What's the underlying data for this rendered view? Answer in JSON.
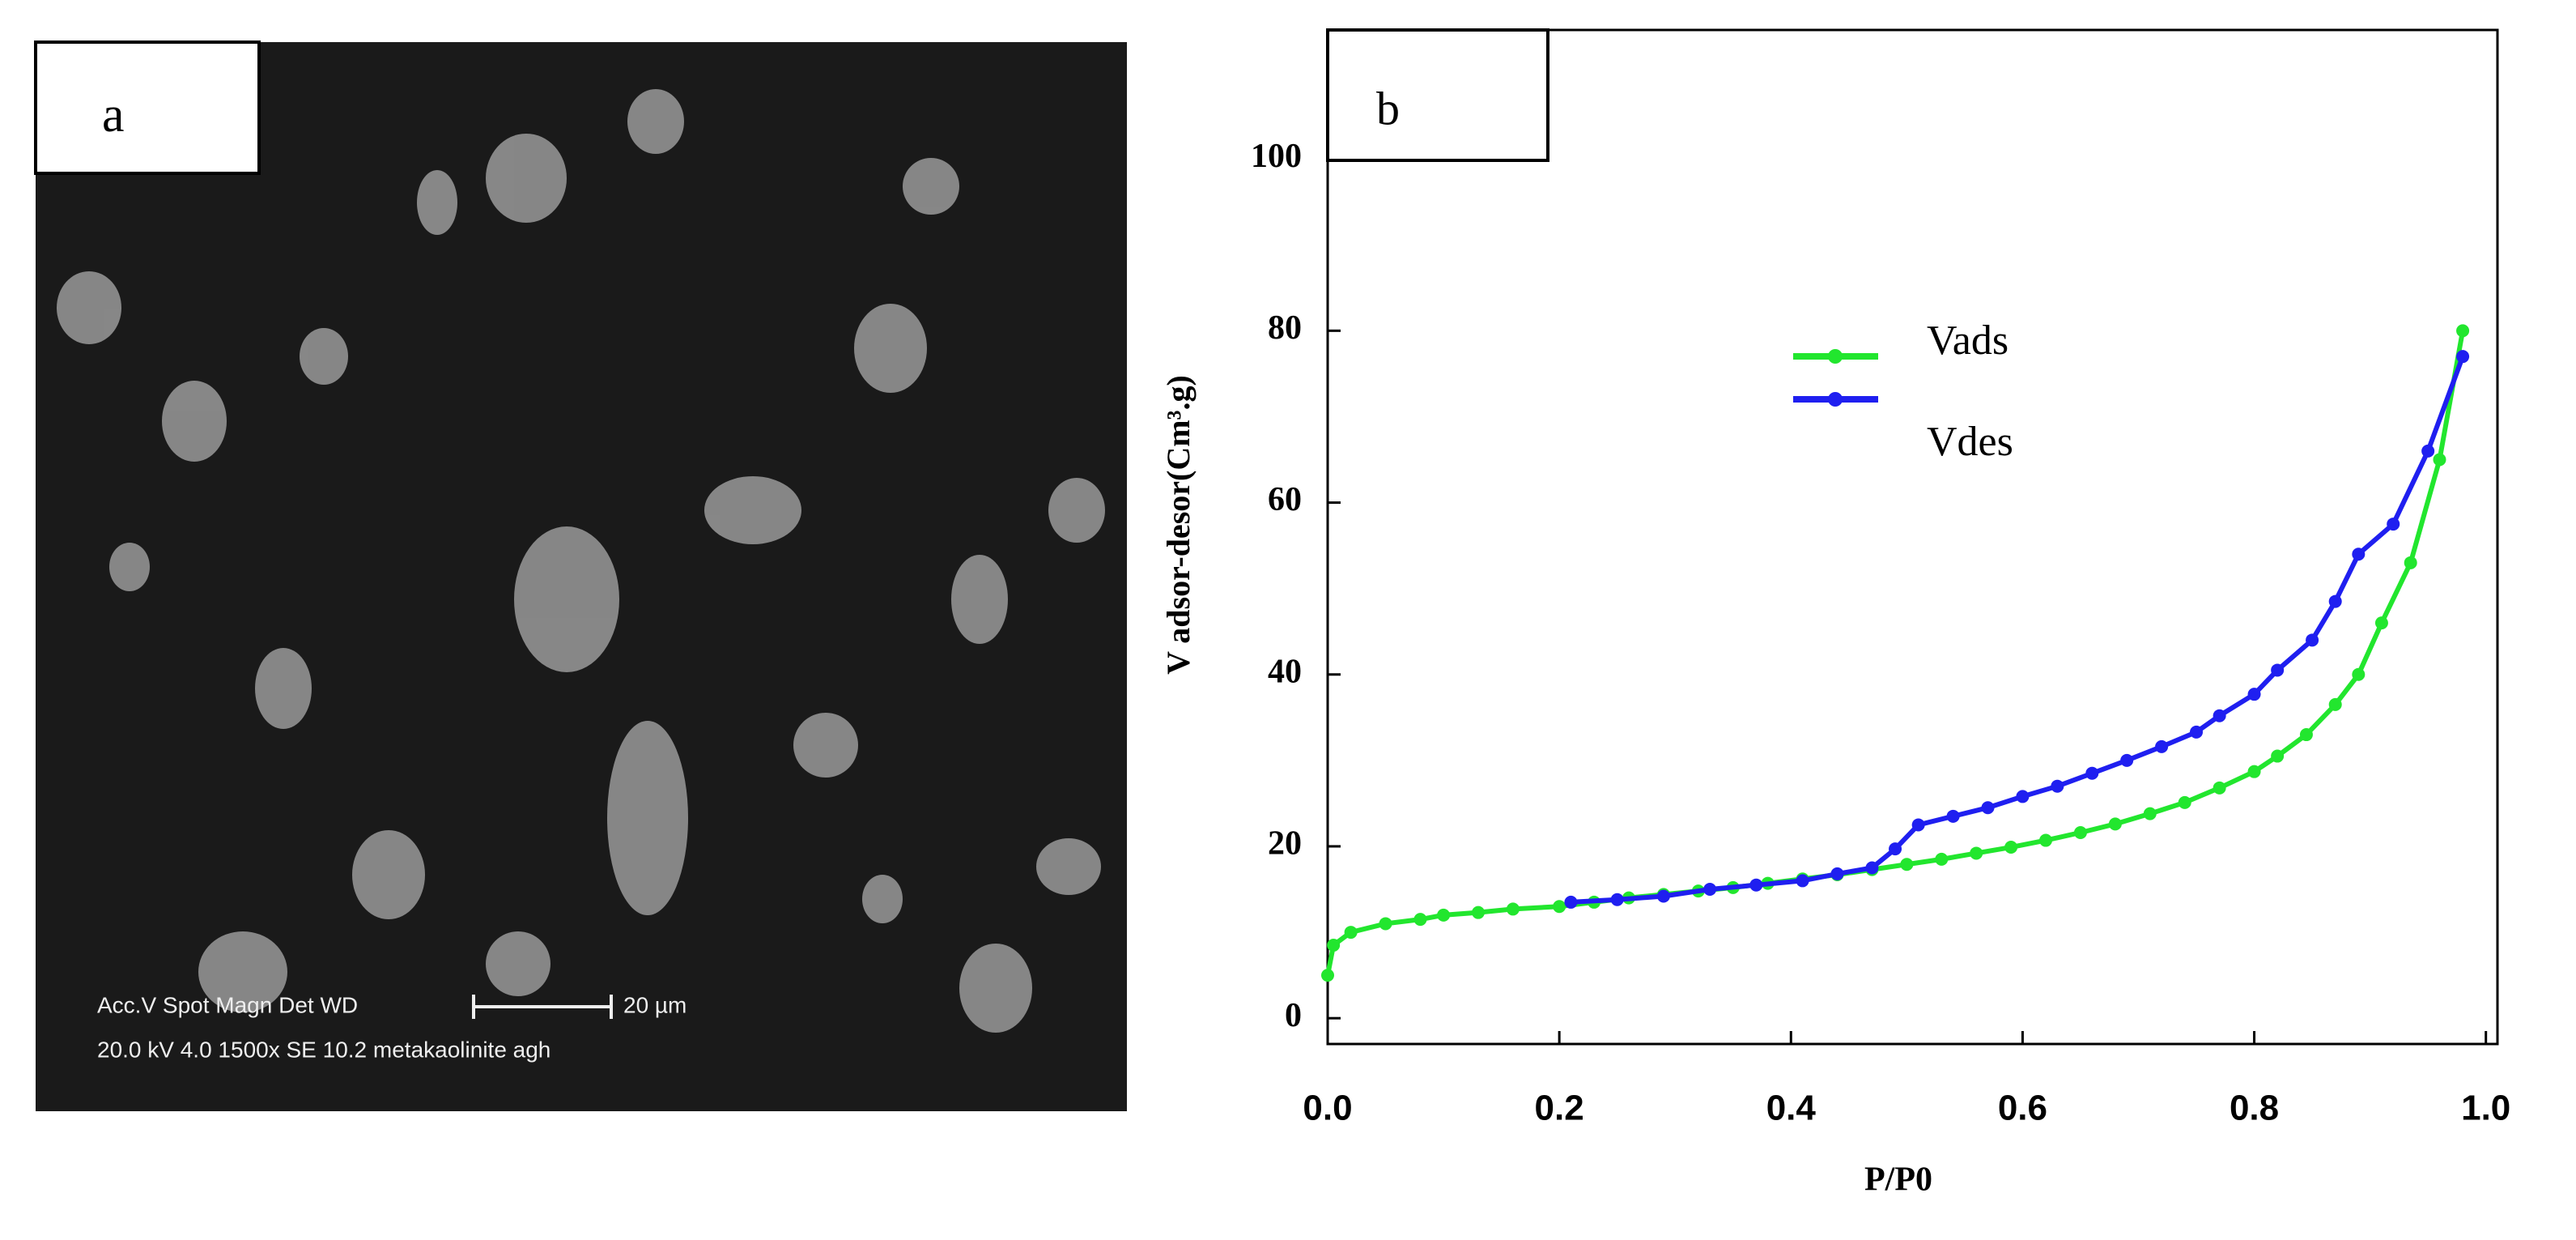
{
  "sem_panel": {
    "label": "a",
    "info_line_1": "Acc.V  Spot Magn    Det  WD",
    "scale_label": "20 µm",
    "info_line_2": "20.0 kV  4.0   1500x   SE   10.2  metakaolinite agh"
  },
  "chart_data": {
    "type": "line",
    "panel_label": "b",
    "x_label": "P/P0",
    "y_label": "V adsor-desor(Cm³.g)",
    "xlim": [
      0,
      1.01
    ],
    "ylim": [
      -3,
      115
    ],
    "xticks": [
      {
        "value": 0,
        "label": "0.0"
      },
      0.2,
      0.4,
      0.6,
      0.8,
      {
        "value": 1,
        "label": "1.0"
      }
    ],
    "yticks": [
      0,
      20,
      40,
      60,
      80,
      100
    ],
    "series": [
      {
        "name": "Vads",
        "color": "#22e62e",
        "x": [
          0,
          0.005,
          0.02,
          0.05,
          0.08,
          0.1,
          0.13,
          0.16,
          0.2,
          0.23,
          0.26,
          0.29,
          0.32,
          0.35,
          0.38,
          0.41,
          0.44,
          0.47,
          0.5,
          0.53,
          0.56,
          0.59,
          0.62,
          0.65,
          0.68,
          0.71,
          0.74,
          0.77,
          0.8,
          0.82,
          0.845,
          0.87,
          0.89,
          0.91,
          0.935,
          0.96,
          0.98
        ],
        "values": [
          5,
          8.5,
          10,
          11,
          11.5,
          12,
          12.3,
          12.7,
          13,
          13.5,
          14,
          14.4,
          14.8,
          15.2,
          15.7,
          16.2,
          16.7,
          17.3,
          17.9,
          18.5,
          19.2,
          19.9,
          20.7,
          21.6,
          22.6,
          23.8,
          25.1,
          26.8,
          28.7,
          30.5,
          33,
          36.5,
          40,
          46,
          53,
          65,
          80
        ]
      },
      {
        "name": "Vdes",
        "color": "#1f1ff0",
        "x": [
          0.21,
          0.25,
          0.29,
          0.33,
          0.37,
          0.41,
          0.44,
          0.47,
          0.49,
          0.51,
          0.54,
          0.57,
          0.6,
          0.63,
          0.66,
          0.69,
          0.72,
          0.75,
          0.77,
          0.8,
          0.82,
          0.85,
          0.87,
          0.89,
          0.92,
          0.95,
          0.98
        ],
        "values": [
          13.5,
          13.8,
          14.2,
          15,
          15.5,
          16,
          16.8,
          17.5,
          19.7,
          22.5,
          23.5,
          24.5,
          25.8,
          27,
          28.5,
          30,
          31.6,
          33.3,
          35.2,
          37.7,
          40.5,
          44,
          48.5,
          54,
          57.5,
          66,
          77
        ]
      }
    ]
  }
}
